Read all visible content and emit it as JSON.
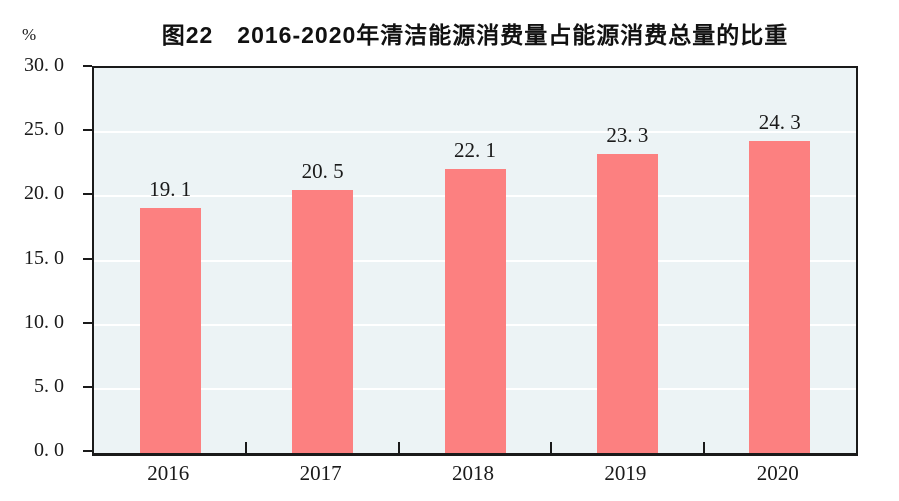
{
  "chart_data": {
    "type": "bar",
    "title": "图22　2016-2020年清洁能源消费量占能源消费总量的比重",
    "unit_label": "%",
    "categories": [
      "2016",
      "2017",
      "2018",
      "2019",
      "2020"
    ],
    "values": [
      19.1,
      20.5,
      22.1,
      23.3,
      24.3
    ],
    "value_labels": [
      "19. 1",
      "20. 5",
      "22. 1",
      "23. 3",
      "24. 3"
    ],
    "xlabel": "",
    "ylabel": "%",
    "ylim": [
      0,
      30
    ],
    "y_ticks": [
      30,
      25,
      20,
      15,
      10,
      5,
      0
    ],
    "y_tick_labels": [
      "30. 0",
      "25. 0",
      "20. 0",
      "15. 0",
      "10. 0",
      "5. 0",
      "0. 0"
    ],
    "grid": true,
    "legend": false,
    "colors": {
      "bar": "#FC8080",
      "plot_background": "#ECF3F5",
      "gridline": "#FFFFFF",
      "axis": "#1A1A1A",
      "text": "#1A1A1A"
    }
  }
}
